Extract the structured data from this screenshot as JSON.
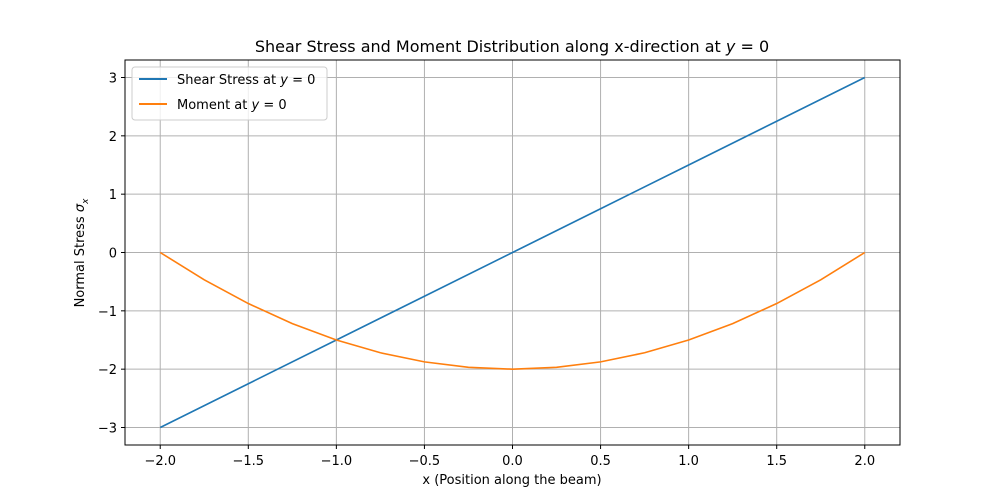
{
  "chart_data": {
    "type": "line",
    "title": "Shear Stress and Moment Distribution along x-direction at",
    "title_math": {
      "var": "y",
      "eq": " = 0"
    },
    "xlabel": "x (Position along the beam)",
    "ylabel": "Normal Stress",
    "ylabel_math": {
      "var": "σ",
      "sub": "x"
    },
    "xlim": [
      -2.2,
      2.2
    ],
    "ylim": [
      -3.3,
      3.3
    ],
    "xticks": [
      -2.0,
      -1.5,
      -1.0,
      -0.5,
      0.0,
      0.5,
      1.0,
      1.5,
      2.0
    ],
    "xtick_labels": [
      "−2.0",
      "−1.5",
      "−1.0",
      "−0.5",
      "0.0",
      "0.5",
      "1.0",
      "1.5",
      "2.0"
    ],
    "yticks": [
      -3,
      -2,
      -1,
      0,
      1,
      2,
      3
    ],
    "ytick_labels": [
      "−3",
      "−2",
      "−1",
      "0",
      "1",
      "2",
      "3"
    ],
    "grid": true,
    "legend_position": "upper-left",
    "series": [
      {
        "name": "Shear Stress at",
        "name_math": {
          "var": "y",
          "eq": " = 0"
        },
        "color": "#1f77b4",
        "x": [
          -2.0,
          -1.5,
          -1.0,
          -0.5,
          0.0,
          0.5,
          1.0,
          1.5,
          2.0
        ],
        "y": [
          -3.0,
          -2.25,
          -1.5,
          -0.75,
          0.0,
          0.75,
          1.5,
          2.25,
          3.0
        ]
      },
      {
        "name": "Moment at",
        "name_math": {
          "var": "y",
          "eq": " = 0"
        },
        "color": "#ff7f0e",
        "x": [
          -2.0,
          -1.75,
          -1.5,
          -1.25,
          -1.0,
          -0.75,
          -0.5,
          -0.25,
          0.0,
          0.25,
          0.5,
          0.75,
          1.0,
          1.25,
          1.5,
          1.75,
          2.0
        ],
        "y": [
          0.0,
          -0.46875,
          -0.875,
          -1.21875,
          -1.5,
          -1.71875,
          -1.875,
          -1.96875,
          -2.0,
          -1.96875,
          -1.875,
          -1.71875,
          -1.5,
          -1.21875,
          -0.875,
          -0.46875,
          0.0
        ]
      }
    ]
  }
}
